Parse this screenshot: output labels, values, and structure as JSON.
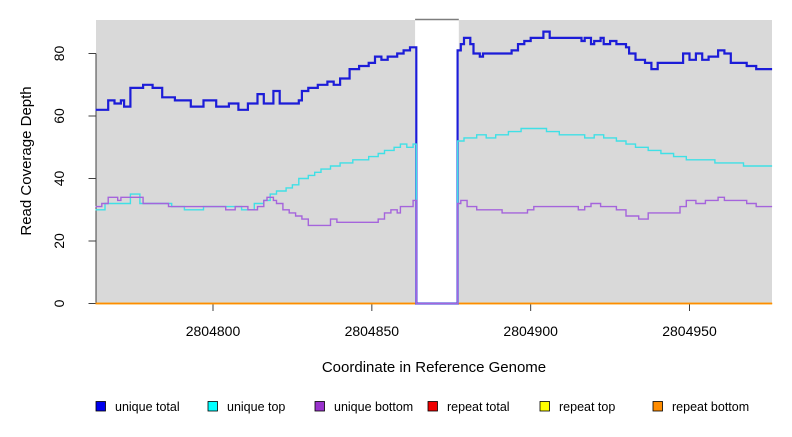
{
  "chart_data": {
    "type": "line",
    "step": true,
    "title": "",
    "xlabel": "Coordinate in Reference Genome",
    "ylabel": "Read Coverage Depth",
    "xlim": [
      2804763,
      2804976
    ],
    "ylim": [
      0,
      91
    ],
    "xticks": [
      2804800,
      2804850,
      2804900,
      2804950
    ],
    "yticks": [
      0,
      20,
      40,
      60,
      80
    ],
    "grid": false,
    "plot_bg": "#d9d9d9",
    "figure_bg": "#ffffff",
    "axis_color": "#404040",
    "gap": {
      "start": 2804864,
      "end": 2804877,
      "note": "white no-data column, coverage drops to 0"
    },
    "legend_position": "bottom",
    "series": [
      {
        "name": "unique total",
        "color": "#1c1cd8",
        "legend_color": "#0000ee",
        "width": 2.2,
        "layer": "front",
        "points": [
          [
            2804763,
            62
          ],
          [
            2804767,
            65
          ],
          [
            2804769,
            64
          ],
          [
            2804771,
            65
          ],
          [
            2804772,
            63
          ],
          [
            2804774,
            69
          ],
          [
            2804778,
            70
          ],
          [
            2804781,
            69
          ],
          [
            2804784,
            66
          ],
          [
            2804788,
            65
          ],
          [
            2804793,
            63
          ],
          [
            2804797,
            65
          ],
          [
            2804801,
            63
          ],
          [
            2804805,
            64
          ],
          [
            2804808,
            62
          ],
          [
            2804811,
            64
          ],
          [
            2804814,
            67
          ],
          [
            2804816,
            64
          ],
          [
            2804819,
            68
          ],
          [
            2804821,
            64
          ],
          [
            2804827,
            65
          ],
          [
            2804828,
            68
          ],
          [
            2804830,
            69
          ],
          [
            2804833,
            70
          ],
          [
            2804836,
            71
          ],
          [
            2804838,
            70
          ],
          [
            2804840,
            72
          ],
          [
            2804843,
            75
          ],
          [
            2804846,
            76
          ],
          [
            2804849,
            77
          ],
          [
            2804851,
            79
          ],
          [
            2804853,
            78
          ],
          [
            2804855,
            79
          ],
          [
            2804858,
            80
          ],
          [
            2804860,
            81
          ],
          [
            2804862,
            82
          ],
          [
            2804864,
            0
          ],
          [
            2804877,
            81
          ],
          [
            2804878,
            83
          ],
          [
            2804879,
            85
          ],
          [
            2804881,
            83
          ],
          [
            2804882,
            80
          ],
          [
            2804884,
            79
          ],
          [
            2804885,
            80
          ],
          [
            2804894,
            81
          ],
          [
            2804896,
            83
          ],
          [
            2804898,
            84
          ],
          [
            2804900,
            85
          ],
          [
            2804904,
            87
          ],
          [
            2804906,
            85
          ],
          [
            2804916,
            84
          ],
          [
            2804917,
            85
          ],
          [
            2804919,
            83
          ],
          [
            2804920,
            84
          ],
          [
            2804922,
            85
          ],
          [
            2804923,
            83
          ],
          [
            2804925,
            84
          ],
          [
            2804927,
            83
          ],
          [
            2804930,
            82
          ],
          [
            2804931,
            80
          ],
          [
            2804933,
            78
          ],
          [
            2804936,
            77
          ],
          [
            2804938,
            75
          ],
          [
            2804940,
            77
          ],
          [
            2804948,
            80
          ],
          [
            2804950,
            78
          ],
          [
            2804952,
            80
          ],
          [
            2804954,
            78
          ],
          [
            2804956,
            79
          ],
          [
            2804959,
            81
          ],
          [
            2804961,
            80
          ],
          [
            2804963,
            77
          ],
          [
            2804968,
            76
          ],
          [
            2804971,
            75
          ],
          [
            2804976,
            75
          ]
        ]
      },
      {
        "name": "unique top",
        "color": "#3fe0e6",
        "legend_color": "#00ffff",
        "width": 1.4,
        "layer": "front",
        "points": [
          [
            2804763,
            30
          ],
          [
            2804766,
            32
          ],
          [
            2804772,
            32
          ],
          [
            2804774,
            35
          ],
          [
            2804777,
            32
          ],
          [
            2804782,
            32
          ],
          [
            2804787,
            31
          ],
          [
            2804791,
            30
          ],
          [
            2804797,
            31
          ],
          [
            2804805,
            31
          ],
          [
            2804809,
            30
          ],
          [
            2804813,
            32
          ],
          [
            2804816,
            33
          ],
          [
            2804818,
            35
          ],
          [
            2804820,
            36
          ],
          [
            2804823,
            37
          ],
          [
            2804825,
            38
          ],
          [
            2804827,
            40
          ],
          [
            2804830,
            41
          ],
          [
            2804832,
            42
          ],
          [
            2804834,
            43
          ],
          [
            2804837,
            44
          ],
          [
            2804840,
            45
          ],
          [
            2804844,
            46
          ],
          [
            2804849,
            47
          ],
          [
            2804852,
            48
          ],
          [
            2804854,
            49
          ],
          [
            2804857,
            50
          ],
          [
            2804859,
            51
          ],
          [
            2804861,
            50
          ],
          [
            2804863,
            51
          ],
          [
            2804864,
            0
          ],
          [
            2804877,
            52
          ],
          [
            2804879,
            53
          ],
          [
            2804883,
            54
          ],
          [
            2804886,
            53
          ],
          [
            2804889,
            54
          ],
          [
            2804893,
            55
          ],
          [
            2804897,
            56
          ],
          [
            2804905,
            55
          ],
          [
            2804909,
            54
          ],
          [
            2804917,
            53
          ],
          [
            2804920,
            54
          ],
          [
            2804923,
            53
          ],
          [
            2804927,
            52
          ],
          [
            2804930,
            51
          ],
          [
            2804933,
            50
          ],
          [
            2804937,
            49
          ],
          [
            2804941,
            48
          ],
          [
            2804945,
            47
          ],
          [
            2804949,
            46
          ],
          [
            2804958,
            45
          ],
          [
            2804967,
            44
          ],
          [
            2804976,
            44
          ]
        ]
      },
      {
        "name": "unique bottom",
        "color": "#a564dc",
        "legend_color": "#9932cc",
        "width": 1.4,
        "layer": "front",
        "points": [
          [
            2804763,
            31
          ],
          [
            2804765,
            32
          ],
          [
            2804767,
            34
          ],
          [
            2804770,
            33
          ],
          [
            2804771,
            34
          ],
          [
            2804775,
            34
          ],
          [
            2804778,
            32
          ],
          [
            2804786,
            31
          ],
          [
            2804797,
            31
          ],
          [
            2804804,
            30
          ],
          [
            2804807,
            31
          ],
          [
            2804811,
            30
          ],
          [
            2804814,
            31
          ],
          [
            2804816,
            33
          ],
          [
            2804817,
            34
          ],
          [
            2804819,
            33
          ],
          [
            2804820,
            32
          ],
          [
            2804822,
            30
          ],
          [
            2804824,
            29
          ],
          [
            2804826,
            28
          ],
          [
            2804828,
            27
          ],
          [
            2804830,
            25
          ],
          [
            2804836,
            25
          ],
          [
            2804837,
            27
          ],
          [
            2804839,
            26
          ],
          [
            2804852,
            27
          ],
          [
            2804854,
            29
          ],
          [
            2804856,
            30
          ],
          [
            2804858,
            29
          ],
          [
            2804859,
            31
          ],
          [
            2804863,
            33
          ],
          [
            2804864,
            0
          ],
          [
            2804877,
            32
          ],
          [
            2804878,
            33
          ],
          [
            2804880,
            31
          ],
          [
            2804883,
            30
          ],
          [
            2804888,
            30
          ],
          [
            2804891,
            29
          ],
          [
            2804899,
            30
          ],
          [
            2804901,
            31
          ],
          [
            2804915,
            30
          ],
          [
            2804917,
            31
          ],
          [
            2804919,
            32
          ],
          [
            2804922,
            31
          ],
          [
            2804927,
            30
          ],
          [
            2804930,
            28
          ],
          [
            2804934,
            27
          ],
          [
            2804937,
            29
          ],
          [
            2804947,
            31
          ],
          [
            2804949,
            33
          ],
          [
            2804952,
            32
          ],
          [
            2804955,
            33
          ],
          [
            2804959,
            34
          ],
          [
            2804961,
            33
          ],
          [
            2804968,
            32
          ],
          [
            2804971,
            31
          ],
          [
            2804976,
            31
          ]
        ]
      },
      {
        "name": "repeat total",
        "color": "#e00000",
        "legend_color": "#ee0000",
        "width": 1.6,
        "layer": "back",
        "segments": [
          [
            [
              2804763,
              0
            ],
            [
              2804864,
              0
            ]
          ],
          [
            [
              2804877,
              0
            ],
            [
              2804976,
              0
            ]
          ]
        ]
      },
      {
        "name": "repeat top",
        "color": "#ffff00",
        "legend_color": "#ffff00",
        "width": 1.6,
        "layer": "back",
        "segments": [
          [
            [
              2804763,
              0
            ],
            [
              2804864,
              0
            ]
          ],
          [
            [
              2804877,
              0
            ],
            [
              2804976,
              0
            ]
          ]
        ]
      },
      {
        "name": "repeat bottom",
        "color": "#ff8c00",
        "legend_color": "#ff8c00",
        "width": 1.6,
        "layer": "back",
        "segments": [
          [
            [
              2804763,
              0
            ],
            [
              2804864,
              0
            ]
          ],
          [
            [
              2804877,
              0
            ],
            [
              2804976,
              0
            ]
          ]
        ]
      }
    ]
  }
}
